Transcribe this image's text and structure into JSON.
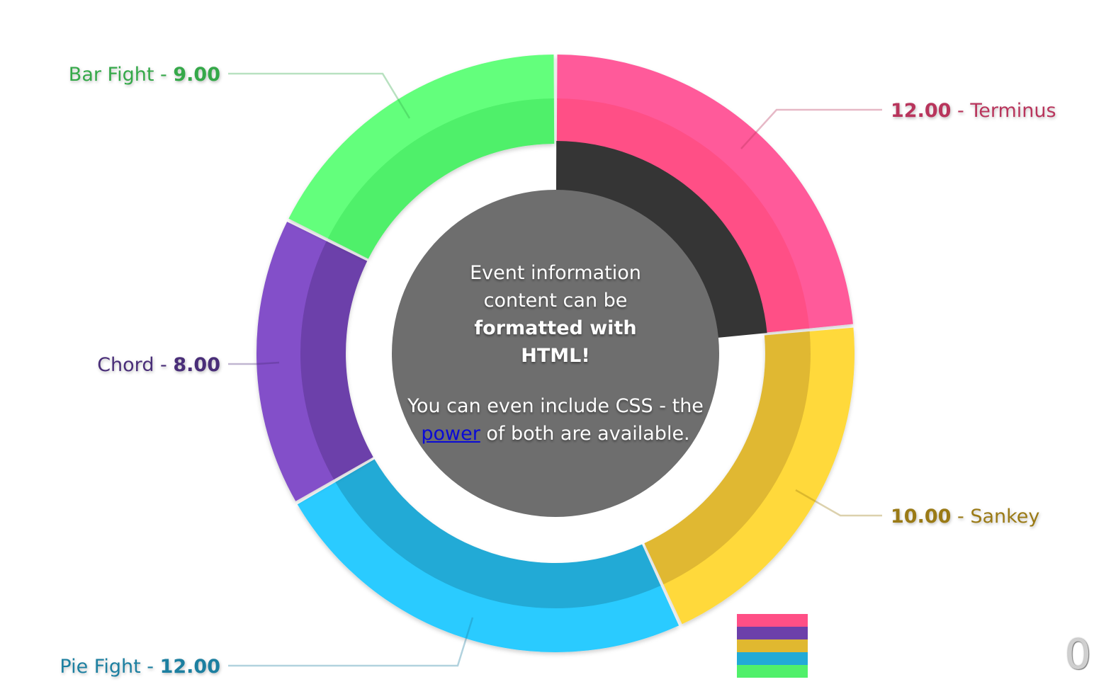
{
  "chart_data": {
    "type": "pie",
    "title": "",
    "series": [
      {
        "name": "Terminus",
        "value": 12.0,
        "display": "12.00",
        "color": "#ff5a9a",
        "inner_color": "#ff4f86",
        "label_color": "#b8345c"
      },
      {
        "name": "Sankey",
        "value": 10.0,
        "display": "10.00",
        "color": "#ffd93a",
        "inner_color": "#e0b830",
        "label_color": "#9a7a15"
      },
      {
        "name": "Pie Fight",
        "value": 12.0,
        "display": "12.00",
        "color": "#2acbff",
        "inner_color": "#22aad6",
        "label_color": "#1f7fa0"
      },
      {
        "name": "Chord",
        "value": 8.0,
        "display": "8.00",
        "color": "#834fc9",
        "inner_color": "#6c40aa",
        "label_color": "#4a2d78"
      },
      {
        "name": "Bar Fight",
        "value": 9.0,
        "display": "9.00",
        "color": "#63ff7b",
        "inner_color": "#50f06a",
        "label_color": "#34a84a"
      }
    ],
    "highlight": {
      "series": "Terminus",
      "color": "#353535"
    },
    "center_color": "#6e6e6e",
    "legend": {
      "placement": "bottom-right",
      "order": [
        "Terminus",
        "Chord",
        "Sankey",
        "Pie Fight",
        "Bar Fight"
      ]
    }
  },
  "center": {
    "line1": "Event information content can be",
    "line1_bold": "formatted with HTML!",
    "line2_pre": "You can even include CSS - the",
    "link_text": "power",
    "line2_post": "of both are available."
  },
  "counter": "0"
}
